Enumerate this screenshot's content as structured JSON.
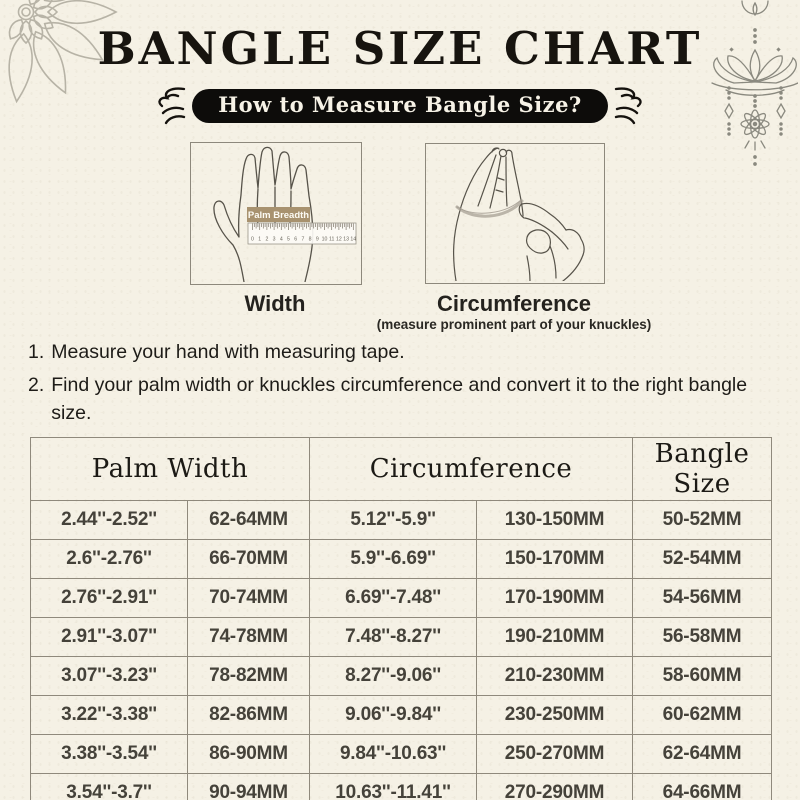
{
  "header": {
    "title": "BANGLE SIZE CHART",
    "pill": "How to Measure Bangle Size?"
  },
  "decorations": {
    "top_left": "mandala-flower",
    "top_right": "lotus-hanging-ornament",
    "pill_flank": "curly-flourish"
  },
  "measure": {
    "left": {
      "illustration": "hand-with-ruler",
      "ruler_label": "Palm Breadth",
      "ruler_numbers": [
        "0",
        "1",
        "2",
        "3",
        "4",
        "5",
        "6",
        "7",
        "8",
        "9",
        "10",
        "11",
        "12",
        "13",
        "14"
      ],
      "caption": "Width"
    },
    "right": {
      "illustration": "pinched-hand-tape-measure",
      "caption": "Circumference",
      "caption_note": "(measure prominent part of your knuckles)"
    }
  },
  "instructions": [
    {
      "num": "1.",
      "text": "Measure your hand with measuring tape."
    },
    {
      "num": "2.",
      "text": "Find your palm width or knuckles circumference and convert it to the right bangle size."
    }
  ],
  "size_table": {
    "headers": [
      "Palm Width",
      "Circumference",
      "Bangle Size"
    ],
    "rows": [
      [
        "2.44''-2.52''",
        "62-64MM",
        "5.12''-5.9''",
        "130-150MM",
        "50-52MM"
      ],
      [
        "2.6''-2.76''",
        "66-70MM",
        "5.9''-6.69''",
        "150-170MM",
        "52-54MM"
      ],
      [
        "2.76''-2.91''",
        "70-74MM",
        "6.69''-7.48''",
        "170-190MM",
        "54-56MM"
      ],
      [
        "2.91''-3.07''",
        "74-78MM",
        "7.48''-8.27''",
        "190-210MM",
        "56-58MM"
      ],
      [
        "3.07''-3.23''",
        "78-82MM",
        "8.27''-9.06''",
        "210-230MM",
        "58-60MM"
      ],
      [
        "3.22''-3.38''",
        "82-86MM",
        "9.06''-9.84''",
        "230-250MM",
        "60-62MM"
      ],
      [
        "3.38''-3.54''",
        "86-90MM",
        "9.84''-10.63''",
        "250-270MM",
        "62-64MM"
      ],
      [
        "3.54''-3.7''",
        "90-94MM",
        "10.63''-11.41''",
        "270-290MM",
        "64-66MM"
      ]
    ]
  },
  "colors": {
    "background": "#f5f1e5",
    "ink": "#17140f",
    "pill_bg": "#0d0c0a",
    "pill_text": "#f6f2e6",
    "table_border": "#8f897c",
    "table_text": "#45423a",
    "ruler_label_bg": "#a8926f",
    "line_art": "#57534a",
    "ornament_gray": "#9b978b"
  }
}
